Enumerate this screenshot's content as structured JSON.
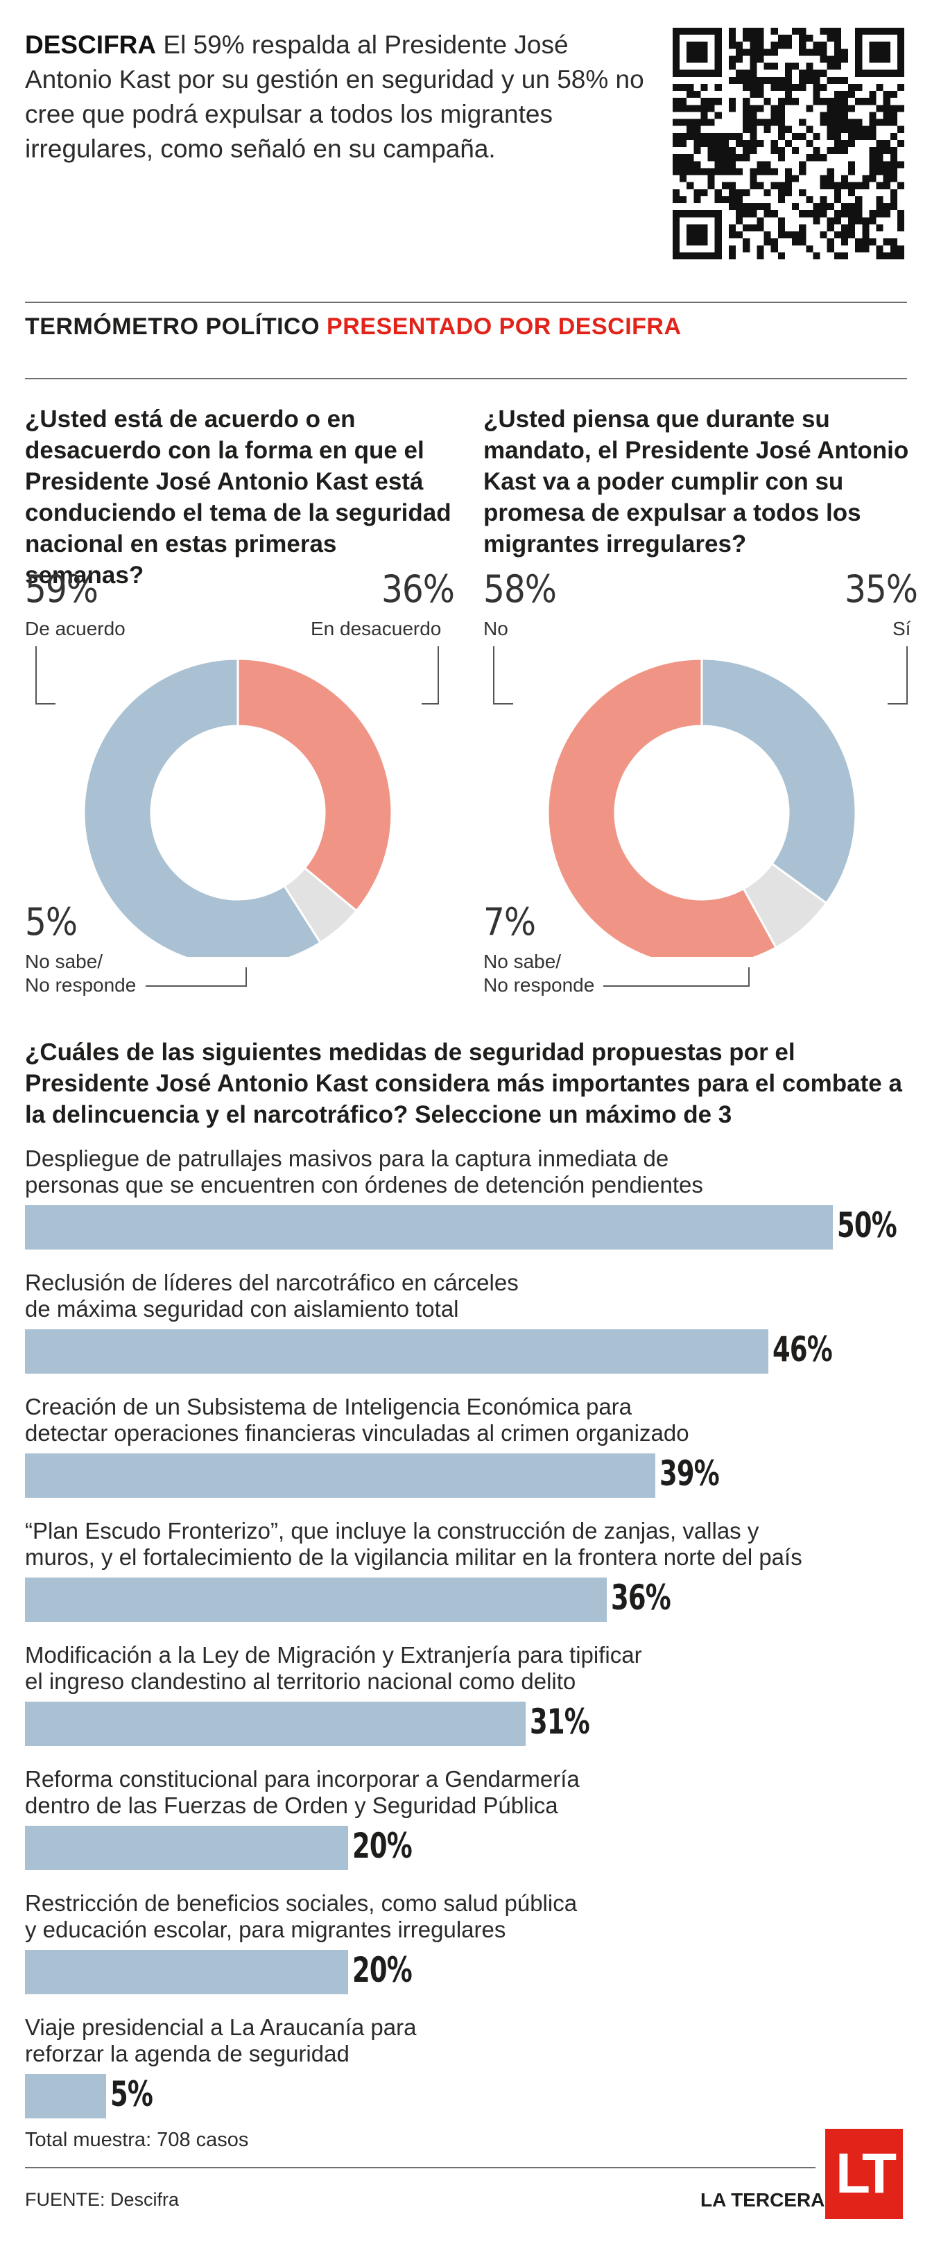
{
  "intro": {
    "brand": "DESCIFRA",
    "text": " El 59% respalda al Presidente José Antonio Kast por su gestión en seguridad y un 58% no cree que podrá expulsar a todos los migrantes irregulares, como señaló en su campaña."
  },
  "header": {
    "title": "TERMÓMETRO POLÍTICO",
    "sponsor": "PRESENTADO POR DESCIFRA"
  },
  "colors": {
    "blue": "#a9c1d3",
    "red": "#f09585",
    "gray": "#e2e2e2",
    "brand_red": "#e2231a"
  },
  "footer": {
    "total": "Total muestra: 708 casos",
    "source": "FUENTE: Descifra",
    "brand": "LA TERCERA",
    "logo": "LT"
  },
  "chart_data": [
    {
      "type": "pie",
      "title": "¿Usted está de acuerdo o en desacuerdo con la forma en que el Presidente José Antonio Kast está conduciendo el tema de la seguridad nacional en estas primeras semanas?",
      "slices": [
        {
          "pct_label": "59%",
          "label": "De acuerdo",
          "value": 59,
          "color": "#a9c1d3"
        },
        {
          "pct_label": "36%",
          "label": "En desacuerdo",
          "value": 36,
          "color": "#f09585"
        },
        {
          "pct_label": "5%",
          "label": "No sabe/",
          "label2": "No responde",
          "value": 5,
          "color": "#e2e2e2"
        }
      ]
    },
    {
      "type": "pie",
      "title": "¿Usted piensa que durante su mandato, el Presidente José Antonio Kast va a poder cumplir con su promesa de expulsar a todos los migrantes irregulares?",
      "slices": [
        {
          "pct_label": "58%",
          "label": "No",
          "value": 58,
          "color": "#f09585"
        },
        {
          "pct_label": "35%",
          "label": "Sí",
          "value": 35,
          "color": "#a9c1d3"
        },
        {
          "pct_label": "7%",
          "label": "No sabe/",
          "label2": "No responde",
          "value": 7,
          "color": "#e2e2e2"
        }
      ]
    },
    {
      "type": "bar",
      "title": "¿Cuáles de las siguientes medidas de seguridad propuestas por el Presidente José Antonio Kast considera más importantes para el combate a la delincuencia y el narcotráfico? Seleccione un máximo de 3",
      "xmax": 50,
      "items": [
        {
          "line1": "Despliegue de patrullajes masivos para la captura inmediata de",
          "line2": "personas que se encuentren con órdenes de detención pendientes",
          "value": 50,
          "value_label": "50%"
        },
        {
          "line1": "Reclusión de líderes del narcotráfico en cárceles",
          "line2": "de máxima seguridad con aislamiento total",
          "value": 46,
          "value_label": "46%"
        },
        {
          "line1": "Creación de un Subsistema de Inteligencia Económica para",
          "line2": "detectar operaciones financieras vinculadas al crimen organizado",
          "value": 39,
          "value_label": "39%"
        },
        {
          "line1": "“Plan Escudo Fronterizo”, que incluye la construcción de zanjas, vallas y",
          "line2": "muros, y el fortalecimiento de la vigilancia militar en la frontera norte del país",
          "value": 36,
          "value_label": "36%"
        },
        {
          "line1": "Modificación a la Ley de Migración y Extranjería para tipificar",
          "line2": "el ingreso clandestino al territorio nacional como delito",
          "value": 31,
          "value_label": "31%"
        },
        {
          "line1": "Reforma constitucional para incorporar a Gendarmería",
          "line2": "dentro de las Fuerzas de Orden y Seguridad Pública",
          "value": 20,
          "value_label": "20%"
        },
        {
          "line1": "Restricción de beneficios sociales, como salud pública",
          "line2": "y educación escolar, para migrantes irregulares",
          "value": 20,
          "value_label": "20%"
        },
        {
          "line1": "Viaje presidencial a La Araucanía para",
          "line2": "reforzar la agenda de seguridad",
          "value": 5,
          "value_label": "5%"
        }
      ]
    }
  ]
}
